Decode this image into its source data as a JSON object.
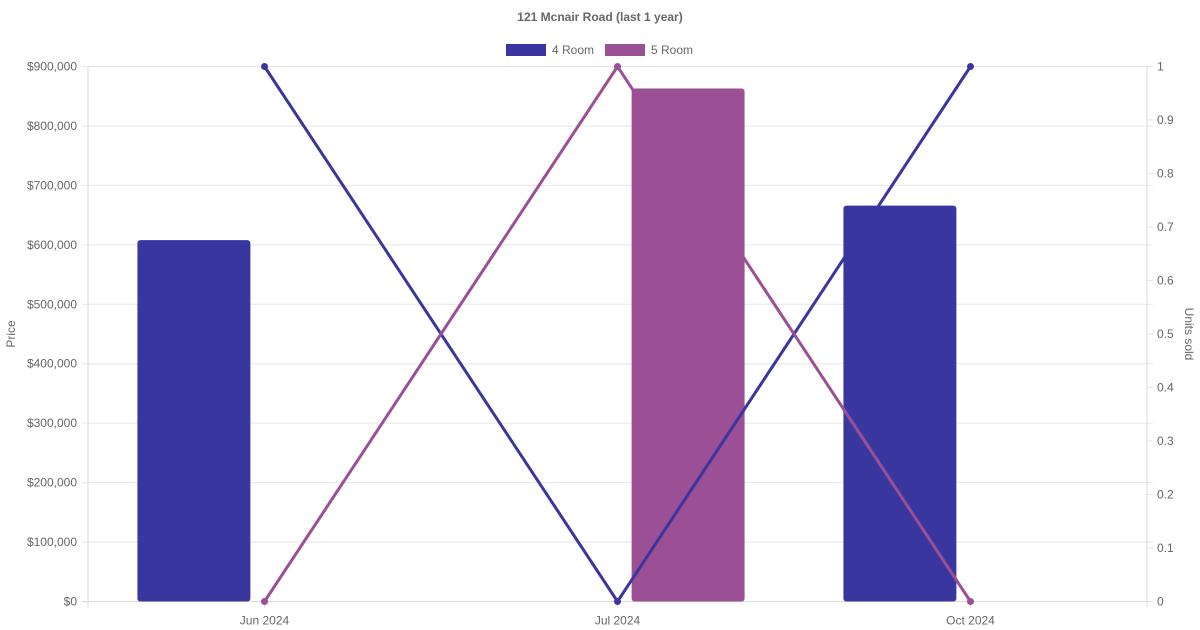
{
  "chart_data": {
    "type": "bar",
    "title": "121 Mcnair Road (last 1 year)",
    "categories": [
      "Jun 2024",
      "Jul 2024",
      "Oct 2024"
    ],
    "y_left": {
      "label": "Price",
      "range": [
        0,
        900000
      ],
      "ticks": [
        "$0",
        "$100,000",
        "$200,000",
        "$300,000",
        "$400,000",
        "$500,000",
        "$600,000",
        "$700,000",
        "$800,000",
        "$900,000"
      ]
    },
    "y_right": {
      "label": "Units sold",
      "range": [
        0,
        1
      ],
      "ticks": [
        "0",
        "0.1",
        "0.2",
        "0.3",
        "0.4",
        "0.5",
        "0.6",
        "0.7",
        "0.8",
        "0.9",
        "1"
      ]
    },
    "series": [
      {
        "name": "4 Room",
        "color": "#3a36a0",
        "price": [
          608000,
          null,
          666000
        ],
        "units_sold": [
          1,
          0,
          1
        ]
      },
      {
        "name": "5 Room",
        "color": "#9b4f94",
        "price": [
          null,
          863000,
          null
        ],
        "units_sold": [
          0,
          1,
          0
        ]
      }
    ],
    "grid": true,
    "legend": "top-center"
  }
}
